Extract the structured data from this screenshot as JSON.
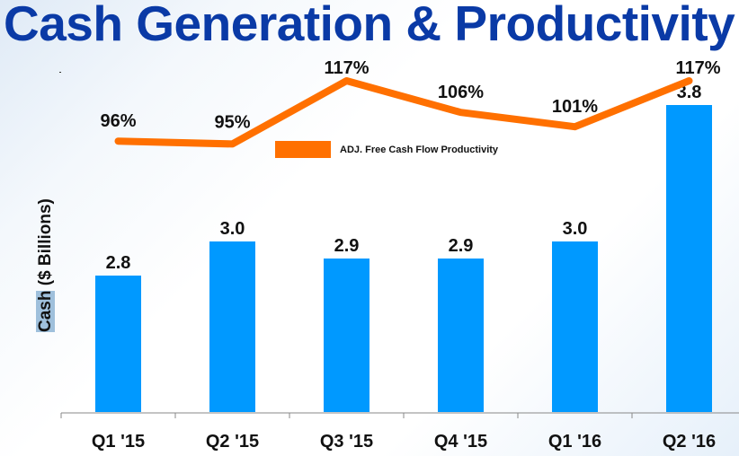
{
  "title": "Cash Generation & Productivity",
  "chart_data": {
    "type": "bar",
    "title": "Cash Generation & Productivity",
    "categories": [
      "Q1 '15",
      "Q2 '15",
      "Q3 '15",
      "Q4 '15",
      "Q1 '16",
      "Q2 '16"
    ],
    "ylabel_highlight": "Cash",
    "ylabel_rest": " ($ Billions)",
    "ylabel": "Cash ($ Billions)",
    "xlabel": "",
    "ylim": [
      2.0,
      3.9
    ],
    "grid": false,
    "series": [
      {
        "name": "Cash",
        "type": "bar",
        "values": [
          2.8,
          3.0,
          2.9,
          2.9,
          3.0,
          3.8
        ],
        "labels": [
          "2.8",
          "3.0",
          "2.9",
          "2.9",
          "3.0",
          "3.8"
        ],
        "color": "#0099ff"
      },
      {
        "name": "ADJ. Free Cash Flow Productivity",
        "type": "line",
        "values": [
          96,
          95,
          117,
          106,
          101,
          117
        ],
        "labels": [
          "96%",
          "95%",
          "117%",
          "106%",
          "101%",
          "117%"
        ],
        "color": "#ff7000"
      }
    ],
    "legend": {
      "label": "ADJ. Free Cash Flow Productivity",
      "position": "top-center"
    }
  }
}
